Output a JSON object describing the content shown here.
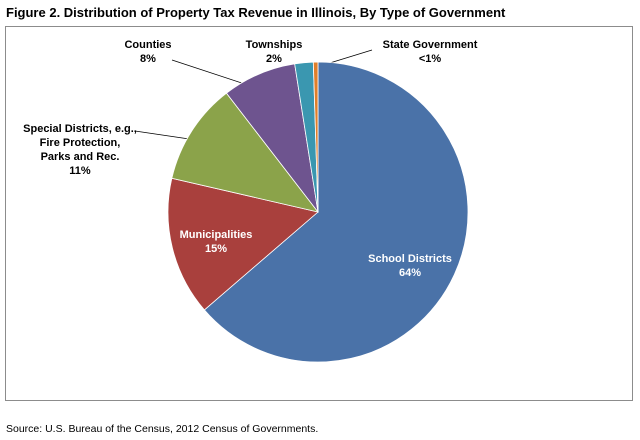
{
  "chart_data": {
    "type": "pie",
    "title": "Figure 2. Distribution of Property Tax Revenue in Illinois, By Type of Government",
    "categories": [
      "School Districts",
      "Municipalities",
      "Special Districts, e.g.,\nFire Protection,\nParks and Rec.",
      "Counties",
      "Townships",
      "State Government"
    ],
    "values": [
      64,
      15,
      11,
      8,
      2,
      0.5
    ],
    "value_labels": [
      "64%",
      "15%",
      "11%",
      "8%",
      "2%",
      "<1%"
    ],
    "colors": [
      "#4a72a8",
      "#a9403d",
      "#8ba34a",
      "#6e548f",
      "#3a97b0",
      "#e07f2a"
    ],
    "source": "Source: U.S. Bureau of the Census, 2012 Census of Governments."
  }
}
